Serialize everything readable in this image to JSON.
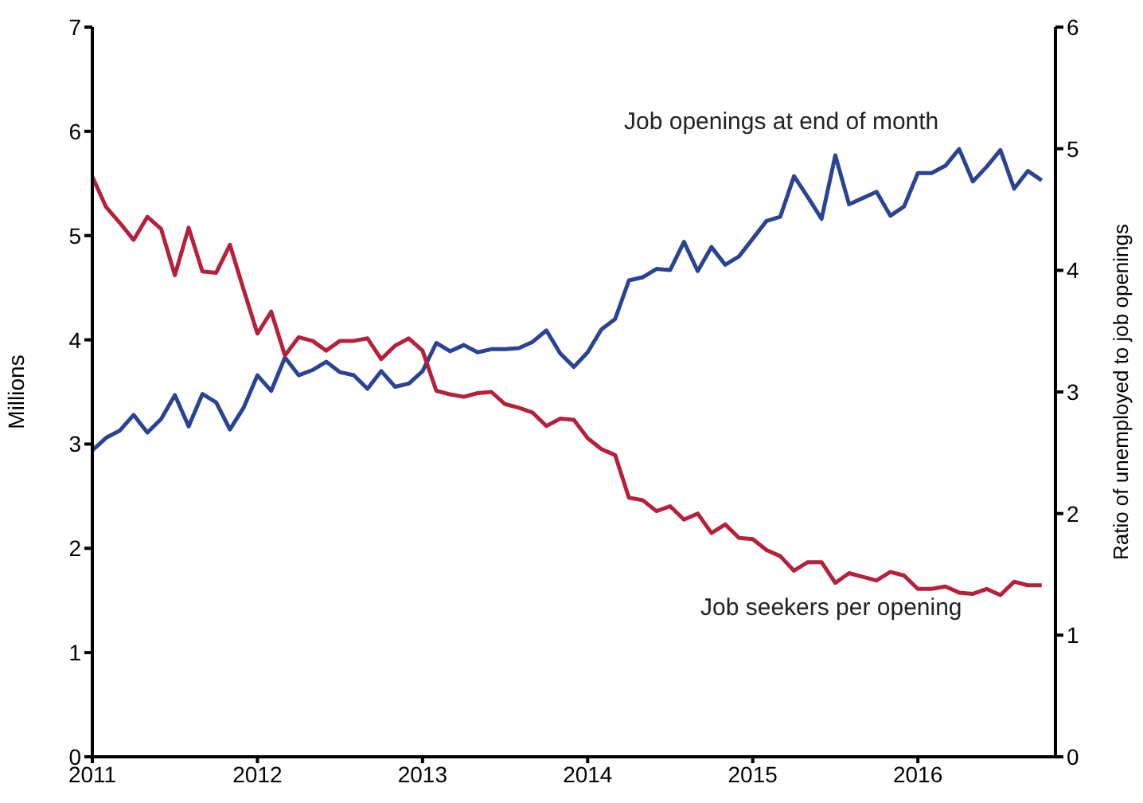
{
  "chart_data": {
    "type": "line",
    "ylabel": "Millions",
    "y2label": "Ratio of unemployed to job openings",
    "x": [
      "2011-01",
      "2011-02",
      "2011-03",
      "2011-04",
      "2011-05",
      "2011-06",
      "2011-07",
      "2011-08",
      "2011-09",
      "2011-10",
      "2011-11",
      "2011-12",
      "2012-01",
      "2012-02",
      "2012-03",
      "2012-04",
      "2012-05",
      "2012-06",
      "2012-07",
      "2012-08",
      "2012-09",
      "2012-10",
      "2012-11",
      "2012-12",
      "2013-01",
      "2013-02",
      "2013-03",
      "2013-04",
      "2013-05",
      "2013-06",
      "2013-07",
      "2013-08",
      "2013-09",
      "2013-10",
      "2013-11",
      "2013-12",
      "2014-01",
      "2014-02",
      "2014-03",
      "2014-04",
      "2014-05",
      "2014-06",
      "2014-07",
      "2014-08",
      "2014-09",
      "2014-10",
      "2014-11",
      "2014-12",
      "2015-01",
      "2015-02",
      "2015-03",
      "2015-04",
      "2015-05",
      "2015-06",
      "2015-07",
      "2015-08",
      "2015-09",
      "2015-10",
      "2015-11",
      "2015-12",
      "2016-01",
      "2016-02",
      "2016-03",
      "2016-04",
      "2016-05",
      "2016-06",
      "2016-07",
      "2016-08",
      "2016-09",
      "2016-10"
    ],
    "series": [
      {
        "name": "Job openings at end of month",
        "color": "#2a4393",
        "values": [
          2.94,
          3.06,
          3.13,
          3.28,
          3.11,
          3.24,
          3.47,
          3.17,
          3.48,
          3.4,
          3.14,
          3.35,
          3.66,
          3.51,
          3.83,
          3.66,
          3.71,
          3.79,
          3.69,
          3.66,
          3.53,
          3.7,
          3.55,
          3.58,
          3.7,
          3.97,
          3.89,
          3.95,
          3.88,
          3.91,
          3.91,
          3.92,
          3.98,
          4.09,
          3.87,
          3.74,
          3.88,
          4.1,
          4.2,
          4.57,
          4.6,
          4.68,
          4.67,
          4.94,
          4.66,
          4.89,
          4.72,
          4.8,
          4.97,
          5.14,
          5.18,
          5.57,
          5.37,
          5.16,
          5.77,
          5.3,
          5.36,
          5.42,
          5.19,
          5.28,
          5.6,
          5.6,
          5.67,
          5.83,
          5.52,
          5.66,
          5.82,
          5.45,
          5.62,
          5.53
        ]
      },
      {
        "name": "Job seekers per opening",
        "color": "#b5213a",
        "axis": "y2",
        "values": [
          4.77,
          4.52,
          4.39,
          4.25,
          4.44,
          4.34,
          3.96,
          4.35,
          3.99,
          3.98,
          4.21,
          3.84,
          3.48,
          3.66,
          3.3,
          3.45,
          3.42,
          3.34,
          3.42,
          3.42,
          3.44,
          3.27,
          3.38,
          3.44,
          3.34,
          3.01,
          2.98,
          2.96,
          2.99,
          3.0,
          2.9,
          2.87,
          2.83,
          2.72,
          2.78,
          2.77,
          2.62,
          2.53,
          2.48,
          2.13,
          2.11,
          2.02,
          2.06,
          1.95,
          2.0,
          1.84,
          1.91,
          1.8,
          1.79,
          1.7,
          1.65,
          1.53,
          1.6,
          1.6,
          1.43,
          1.51,
          1.48,
          1.45,
          1.52,
          1.49,
          1.38,
          1.38,
          1.4,
          1.35,
          1.34,
          1.38,
          1.33,
          1.44,
          1.41,
          1.41
        ]
      }
    ],
    "xlim": [
      "2011-01",
      "2016-11"
    ],
    "xticks": [
      "2011",
      "2012",
      "2013",
      "2014",
      "2015",
      "2016"
    ],
    "ylim": [
      0,
      7
    ],
    "yticks": [
      0,
      1,
      2,
      3,
      4,
      5,
      6,
      7
    ],
    "y2lim": [
      0,
      6
    ],
    "y2ticks": [
      0,
      1,
      2,
      3,
      4,
      5,
      6
    ],
    "grid": false,
    "legend": false,
    "marker": "none",
    "line_style": "solid"
  }
}
